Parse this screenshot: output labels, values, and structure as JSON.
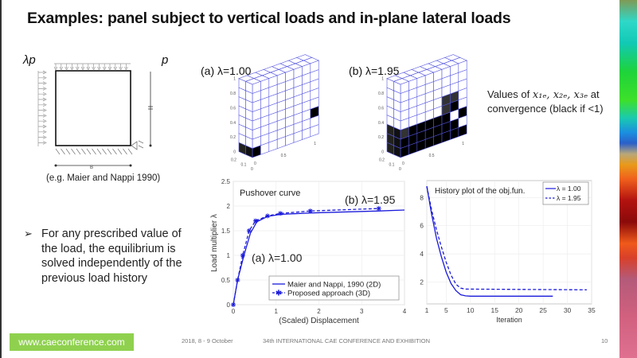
{
  "slide": {
    "title": "Examples: panel subject to vertical loads and in-plane lateral loads",
    "page_number": "10"
  },
  "diagram": {
    "lateral_load_label": "λp",
    "vertical_load_label": "p",
    "width_label": "B",
    "caption": "(e.g. Maier and Nappi 1990)"
  },
  "grids": [
    {
      "label": "(a) λ=1.00",
      "front_black": [
        [
          0,
          0
        ],
        [
          7,
          2
        ]
      ],
      "front_gray": [],
      "side_black_rows": [
        0
      ]
    },
    {
      "label": "(b) λ=1.95",
      "front_black": [
        [
          0,
          0
        ],
        [
          1,
          0
        ],
        [
          2,
          0
        ],
        [
          3,
          0
        ],
        [
          4,
          0
        ],
        [
          5,
          0
        ],
        [
          6,
          0
        ],
        [
          7,
          0
        ],
        [
          0,
          1
        ],
        [
          1,
          1
        ],
        [
          2,
          1
        ],
        [
          3,
          1
        ],
        [
          4,
          1
        ],
        [
          5,
          1
        ],
        [
          6,
          1
        ],
        [
          1,
          2
        ],
        [
          2,
          2
        ],
        [
          3,
          2
        ],
        [
          4,
          2
        ],
        [
          5,
          2
        ],
        [
          7,
          2
        ],
        [
          6,
          3
        ]
      ],
      "front_gray": [
        [
          0,
          2
        ],
        [
          5,
          3
        ],
        [
          5,
          4
        ],
        [
          6,
          4
        ]
      ],
      "side_black_rows": [
        0,
        1,
        2
      ]
    }
  ],
  "grid_axis_ticks": {
    "vertical": [
      "1",
      "0.8",
      "0.6",
      "0.4",
      "0.2",
      "0"
    ],
    "horizontal": [
      "0.5",
      "1"
    ],
    "depth": [
      "0.2",
      "0.1",
      "0"
    ],
    "origin": "0"
  },
  "values_note": {
    "prefix": "Values of ",
    "math": "x₁ₑ, x₂ₑ, x₃ₑ",
    "suffix": " at",
    "line2": "convergence (black if  <1)"
  },
  "bullet": {
    "marker": "➢",
    "text": "For any prescribed value of the load, the equilibrium is solved independently of the previous load history"
  },
  "chart_data": [
    {
      "type": "line",
      "title": "Pushover curve",
      "xlabel": "(Scaled) Displacement",
      "ylabel": "Load multiplier λ",
      "xlim": [
        0,
        4
      ],
      "ylim": [
        0,
        2.5
      ],
      "xticks": [
        "0",
        "1",
        "2",
        "3",
        "4"
      ],
      "yticks": [
        "0",
        "0.5",
        "1",
        "1.5",
        "2",
        "2.5"
      ],
      "grid": true,
      "legend_position": "bottom-right",
      "annotations": [
        "(a) λ=1.00",
        "(b) λ=1.95"
      ],
      "color": "#1a1adb",
      "series": [
        {
          "name": "Maier and Nappi, 1990 (2D)",
          "style": "solid",
          "x": [
            0,
            0.1,
            0.25,
            0.4,
            0.55,
            0.8,
            1.1,
            1.8,
            3.4,
            4.0
          ],
          "y": [
            0,
            0.5,
            1.0,
            1.45,
            1.68,
            1.79,
            1.83,
            1.86,
            1.9,
            1.92
          ]
        },
        {
          "name": "Proposed approach (3D)",
          "style": "dashed-star",
          "x": [
            0,
            0.1,
            0.22,
            0.37,
            0.52,
            0.8,
            1.1,
            1.8,
            3.4
          ],
          "y": [
            0,
            0.5,
            1.0,
            1.5,
            1.7,
            1.8,
            1.85,
            1.9,
            1.95
          ]
        }
      ]
    },
    {
      "type": "line",
      "title": "History plot of the obj.fun.",
      "xlabel": "Iteration",
      "ylabel": "",
      "xlim": [
        1,
        35
      ],
      "ylim": [
        0.45,
        9.2
      ],
      "xticks": [
        "1",
        "5",
        "10",
        "15",
        "20",
        "25",
        "30",
        "35"
      ],
      "xtick_values": [
        1,
        5,
        10,
        15,
        20,
        25,
        30,
        35
      ],
      "yticks": [
        "2",
        "4",
        "6",
        "8"
      ],
      "ytick_values": [
        2,
        4,
        6,
        8
      ],
      "grid": true,
      "legend_position": "top-right",
      "color": "#1a1adb",
      "series": [
        {
          "name": "λ = 1.00",
          "style": "solid",
          "x": [
            1,
            2,
            3,
            4,
            5,
            6,
            7,
            8,
            9,
            10,
            27
          ],
          "y": [
            8.8,
            6.8,
            5.1,
            3.8,
            2.7,
            1.9,
            1.4,
            1.1,
            1.02,
            1.0,
            1.0
          ]
        },
        {
          "name": "λ = 1.95",
          "style": "dashed",
          "x": [
            1,
            2,
            3,
            4,
            5,
            6,
            7,
            8,
            9,
            10,
            34
          ],
          "y": [
            8.8,
            7.1,
            5.7,
            4.5,
            3.4,
            2.5,
            1.85,
            1.57,
            1.5,
            1.5,
            1.45
          ]
        }
      ]
    }
  ],
  "footer": {
    "website": "www.caeconference.com",
    "date": "2018, 8 -  9 October",
    "conference": "34th INTERNATIONAL CAE CONFERENCE AND EXHIBITION"
  },
  "colors": {
    "accent_green": "#8fd14f",
    "plot_blue": "#1a1adb",
    "grid_blue": "#5555e0"
  }
}
